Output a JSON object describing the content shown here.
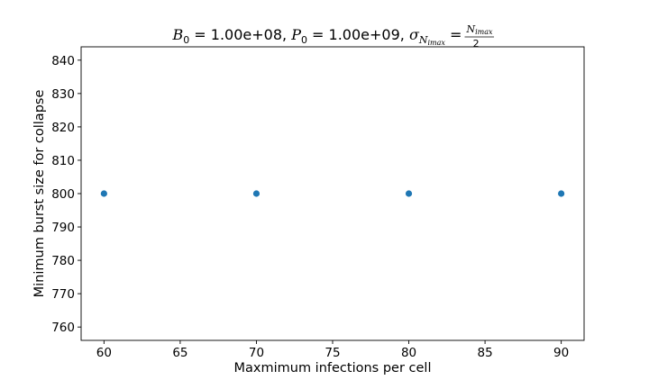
{
  "chart_data": {
    "type": "scatter",
    "title": {
      "b_sym": "B",
      "b_sub": "0",
      "b_val": " = 1.00e+08, ",
      "p_sym": "P",
      "p_sub": "0",
      "p_val": " = 1.00e+09, ",
      "sigma_sym": "σ",
      "sigma_sub": "N",
      "sigma_subsub": "imax",
      "equals": " = ",
      "frac_num": "N",
      "frac_num_sub": "imax",
      "frac_den": "2"
    },
    "xlabel": "Maxmimum infections per cell",
    "ylabel": "Minimum burst size for collapse",
    "xlim": [
      58.5,
      91.5
    ],
    "ylim": [
      756,
      844
    ],
    "xticks": [
      60,
      65,
      70,
      75,
      80,
      85,
      90
    ],
    "yticks": [
      760,
      770,
      780,
      790,
      800,
      810,
      820,
      830,
      840
    ],
    "grid": false,
    "color": "#1f77b4",
    "x": [
      60,
      70,
      80,
      90
    ],
    "y": [
      800,
      800,
      800,
      800
    ]
  }
}
